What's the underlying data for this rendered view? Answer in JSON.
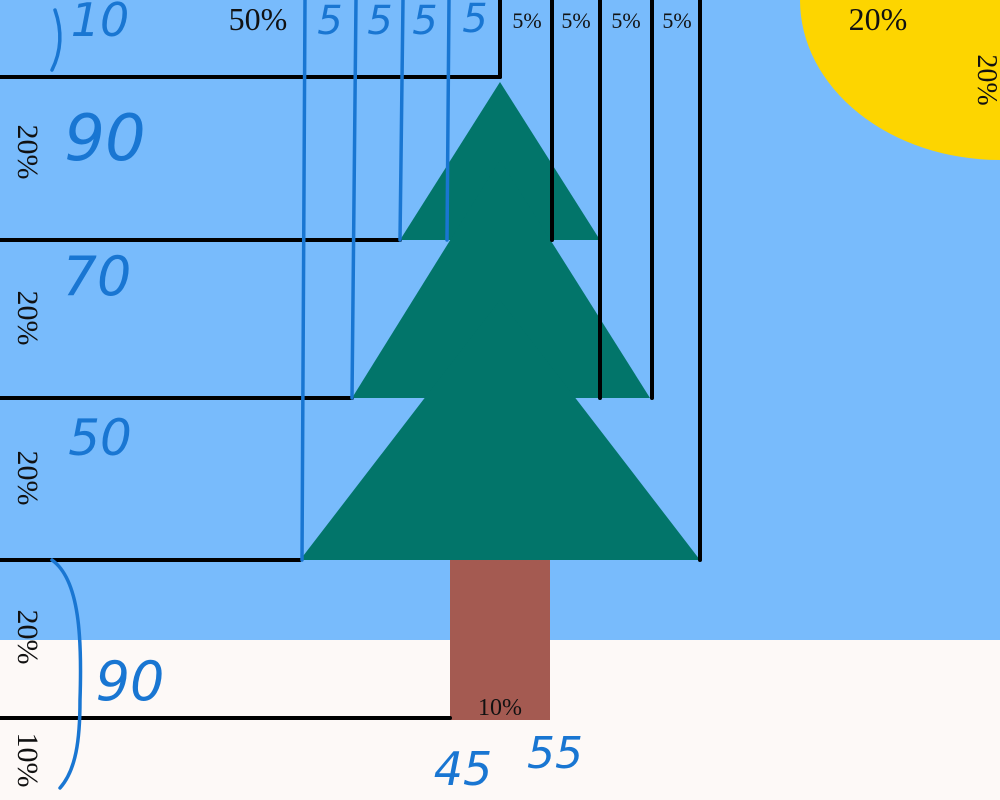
{
  "colors": {
    "sky": "#78bbfc",
    "snow": "#fdf9f7",
    "sun": "#fdd500",
    "tree": "#02756a",
    "trunk": "#a45a51",
    "black_line": "#000000",
    "blue_line": "#1976d2"
  },
  "top_labels": {
    "left_percent": "50%",
    "blue_5a": "5",
    "blue_5b": "5",
    "blue_5c": "5",
    "blue_5d": "5",
    "black_5a": "5%",
    "black_5b": "5%",
    "black_5c": "5%",
    "black_5d": "5%"
  },
  "sun": {
    "label_h": "20%",
    "label_v": "20%"
  },
  "left_labels": {
    "row1": "20%",
    "row2": "20%",
    "row3": "20%",
    "row4": "20%",
    "row5": "10%"
  },
  "hand_numbers": {
    "top": "10",
    "n90": "90",
    "n70": "70",
    "n50": "50",
    "bottom_90": "90",
    "n45": "45",
    "n55": "55"
  },
  "trunk": {
    "label": "10%"
  }
}
